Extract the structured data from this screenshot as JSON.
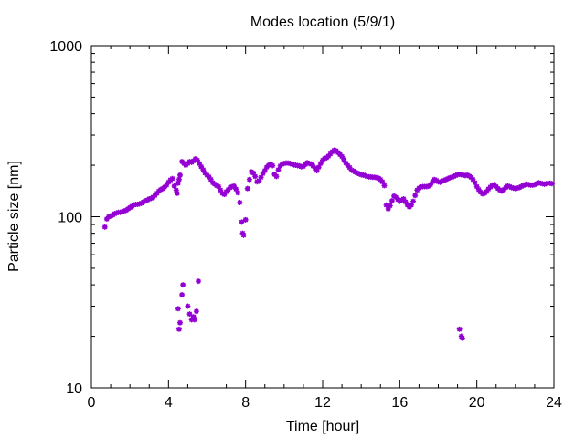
{
  "chart_data": {
    "type": "scatter",
    "title": "Modes location (5/9/1)",
    "xlabel": "Time [hour]",
    "ylabel": "Particle size [nm]",
    "xlim": [
      0,
      24
    ],
    "ylim": [
      10,
      1000
    ],
    "yscale": "log",
    "grid": false,
    "x_ticks": [
      0,
      4,
      8,
      12,
      16,
      20,
      24
    ],
    "x_tick_labels": [
      "0",
      "4",
      "8",
      "12",
      "16",
      "20",
      "24"
    ],
    "y_ticks": [
      10,
      100,
      1000
    ],
    "y_tick_labels": [
      "10",
      "100",
      "1000"
    ],
    "marker_color": "#9400d3",
    "series": [
      {
        "points": [
          [
            0.7,
            87
          ],
          [
            0.8,
            97
          ],
          [
            0.9,
            100
          ],
          [
            1.0,
            101
          ],
          [
            1.1,
            102
          ],
          [
            1.2,
            104
          ],
          [
            1.3,
            105
          ],
          [
            1.4,
            106
          ],
          [
            1.5,
            106
          ],
          [
            1.6,
            107
          ],
          [
            1.7,
            108
          ],
          [
            1.8,
            109
          ],
          [
            1.9,
            111
          ],
          [
            2.0,
            113
          ],
          [
            2.1,
            115
          ],
          [
            2.2,
            117
          ],
          [
            2.3,
            118
          ],
          [
            2.4,
            118
          ],
          [
            2.5,
            119
          ],
          [
            2.6,
            120
          ],
          [
            2.7,
            122
          ],
          [
            2.8,
            124
          ],
          [
            2.9,
            125
          ],
          [
            3.0,
            127
          ],
          [
            3.1,
            128
          ],
          [
            3.2,
            130
          ],
          [
            3.3,
            133
          ],
          [
            3.4,
            137
          ],
          [
            3.5,
            141
          ],
          [
            3.6,
            144
          ],
          [
            3.7,
            146
          ],
          [
            3.8,
            149
          ],
          [
            3.9,
            153
          ],
          [
            4.0,
            159
          ],
          [
            4.1,
            164
          ],
          [
            4.2,
            167
          ],
          [
            4.3,
            151
          ],
          [
            4.4,
            143
          ],
          [
            4.45,
            137
          ],
          [
            4.5,
            157
          ],
          [
            4.55,
            165
          ],
          [
            4.6,
            175
          ],
          [
            4.7,
            210
          ],
          [
            4.8,
            205
          ],
          [
            4.9,
            200
          ],
          [
            5.0,
            205
          ],
          [
            5.1,
            210
          ],
          [
            5.2,
            208
          ],
          [
            5.3,
            212
          ],
          [
            5.4,
            218
          ],
          [
            5.5,
            214
          ],
          [
            5.6,
            205
          ],
          [
            5.7,
            196
          ],
          [
            5.8,
            188
          ],
          [
            5.9,
            180
          ],
          [
            6.0,
            175
          ],
          [
            6.1,
            171
          ],
          [
            6.2,
            165
          ],
          [
            6.3,
            158
          ],
          [
            6.4,
            155
          ],
          [
            6.5,
            152
          ],
          [
            6.6,
            150
          ],
          [
            6.7,
            143
          ],
          [
            6.8,
            137
          ],
          [
            6.9,
            135
          ],
          [
            7.0,
            140
          ],
          [
            7.1,
            144
          ],
          [
            7.2,
            148
          ],
          [
            7.3,
            150
          ],
          [
            7.4,
            151
          ],
          [
            7.5,
            145
          ],
          [
            7.6,
            138
          ],
          [
            7.7,
            121
          ],
          [
            7.8,
            93
          ],
          [
            7.85,
            80
          ],
          [
            7.9,
            78
          ],
          [
            8.0,
            96
          ],
          [
            8.1,
            146
          ],
          [
            8.2,
            165
          ],
          [
            8.3,
            183
          ],
          [
            8.4,
            180
          ],
          [
            8.5,
            172
          ],
          [
            8.6,
            160
          ],
          [
            8.7,
            162
          ],
          [
            8.8,
            170
          ],
          [
            8.9,
            179
          ],
          [
            9.0,
            186
          ],
          [
            9.1,
            195
          ],
          [
            9.2,
            200
          ],
          [
            9.3,
            203
          ],
          [
            9.4,
            199
          ],
          [
            9.5,
            177
          ],
          [
            9.6,
            172
          ],
          [
            9.7,
            188
          ],
          [
            9.8,
            198
          ],
          [
            9.9,
            203
          ],
          [
            10.0,
            205
          ],
          [
            10.1,
            206
          ],
          [
            10.2,
            206
          ],
          [
            10.3,
            205
          ],
          [
            10.4,
            203
          ],
          [
            10.5,
            201
          ],
          [
            10.6,
            200
          ],
          [
            10.7,
            199
          ],
          [
            10.8,
            198
          ],
          [
            10.9,
            196
          ],
          [
            11.0,
            197
          ],
          [
            11.1,
            202
          ],
          [
            11.2,
            207
          ],
          [
            11.3,
            205
          ],
          [
            11.4,
            203
          ],
          [
            11.5,
            198
          ],
          [
            11.6,
            192
          ],
          [
            11.7,
            186
          ],
          [
            11.8,
            195
          ],
          [
            11.9,
            205
          ],
          [
            12.0,
            214
          ],
          [
            12.1,
            219
          ],
          [
            12.2,
            221
          ],
          [
            12.3,
            226
          ],
          [
            12.4,
            233
          ],
          [
            12.5,
            240
          ],
          [
            12.6,
            245
          ],
          [
            12.7,
            243
          ],
          [
            12.8,
            237
          ],
          [
            12.9,
            231
          ],
          [
            13.0,
            225
          ],
          [
            13.1,
            216
          ],
          [
            13.2,
            206
          ],
          [
            13.3,
            199
          ],
          [
            13.4,
            194
          ],
          [
            13.5,
            187
          ],
          [
            13.6,
            185
          ],
          [
            13.7,
            182
          ],
          [
            13.8,
            180
          ],
          [
            13.9,
            178
          ],
          [
            14.0,
            176
          ],
          [
            14.1,
            175
          ],
          [
            14.2,
            174
          ],
          [
            14.3,
            172
          ],
          [
            14.4,
            171
          ],
          [
            14.5,
            171
          ],
          [
            14.6,
            170
          ],
          [
            14.7,
            170
          ],
          [
            14.8,
            169
          ],
          [
            14.9,
            168
          ],
          [
            15.0,
            165
          ],
          [
            15.1,
            160
          ],
          [
            15.2,
            152
          ],
          [
            15.3,
            117
          ],
          [
            15.4,
            111
          ],
          [
            15.5,
            116
          ],
          [
            15.6,
            124
          ],
          [
            15.7,
            132
          ],
          [
            15.8,
            130
          ],
          [
            15.9,
            126
          ],
          [
            16.0,
            123
          ],
          [
            16.1,
            125
          ],
          [
            16.2,
            127
          ],
          [
            16.3,
            122
          ],
          [
            16.4,
            117
          ],
          [
            16.5,
            114
          ],
          [
            16.6,
            117
          ],
          [
            16.7,
            123
          ],
          [
            16.8,
            133
          ],
          [
            16.9,
            143
          ],
          [
            17.0,
            147
          ],
          [
            17.1,
            149
          ],
          [
            17.2,
            150
          ],
          [
            17.3,
            150
          ],
          [
            17.4,
            150
          ],
          [
            17.5,
            151
          ],
          [
            17.6,
            154
          ],
          [
            17.7,
            160
          ],
          [
            17.8,
            165
          ],
          [
            17.9,
            163
          ],
          [
            18.0,
            160
          ],
          [
            18.1,
            159
          ],
          [
            18.2,
            161
          ],
          [
            18.3,
            163
          ],
          [
            18.4,
            165
          ],
          [
            18.5,
            167
          ],
          [
            18.6,
            169
          ],
          [
            18.7,
            170
          ],
          [
            18.8,
            172
          ],
          [
            18.9,
            174
          ],
          [
            19.0,
            176
          ],
          [
            19.1,
            177
          ],
          [
            19.2,
            176
          ],
          [
            19.3,
            175
          ],
          [
            19.4,
            174
          ],
          [
            19.5,
            175
          ],
          [
            19.6,
            173
          ],
          [
            19.7,
            170
          ],
          [
            19.8,
            165
          ],
          [
            19.9,
            158
          ],
          [
            20.0,
            150
          ],
          [
            20.1,
            144
          ],
          [
            20.2,
            139
          ],
          [
            20.3,
            136
          ],
          [
            20.4,
            137
          ],
          [
            20.5,
            140
          ],
          [
            20.6,
            145
          ],
          [
            20.7,
            149
          ],
          [
            20.8,
            152
          ],
          [
            20.9,
            154
          ],
          [
            21.0,
            150
          ],
          [
            21.1,
            146
          ],
          [
            21.2,
            143
          ],
          [
            21.3,
            141
          ],
          [
            21.4,
            144
          ],
          [
            21.5,
            148
          ],
          [
            21.6,
            151
          ],
          [
            21.7,
            150
          ],
          [
            21.8,
            148
          ],
          [
            21.9,
            147
          ],
          [
            22.0,
            146
          ],
          [
            22.1,
            147
          ],
          [
            22.2,
            148
          ],
          [
            22.3,
            150
          ],
          [
            22.4,
            152
          ],
          [
            22.5,
            154
          ],
          [
            22.6,
            155
          ],
          [
            22.7,
            154
          ],
          [
            22.8,
            153
          ],
          [
            22.9,
            153
          ],
          [
            23.0,
            154
          ],
          [
            23.1,
            156
          ],
          [
            23.2,
            158
          ],
          [
            23.3,
            157
          ],
          [
            23.4,
            156
          ],
          [
            23.5,
            155
          ],
          [
            23.6,
            156
          ],
          [
            23.7,
            157
          ],
          [
            23.8,
            157
          ],
          [
            23.9,
            156
          ],
          [
            4.5,
            29
          ],
          [
            4.55,
            22
          ],
          [
            4.6,
            24
          ],
          [
            4.7,
            35
          ],
          [
            4.75,
            40
          ],
          [
            5.0,
            30
          ],
          [
            5.1,
            27
          ],
          [
            5.2,
            25
          ],
          [
            5.3,
            26
          ],
          [
            5.35,
            25
          ],
          [
            5.45,
            28
          ],
          [
            5.55,
            42
          ],
          [
            19.1,
            22
          ],
          [
            19.2,
            20
          ],
          [
            19.25,
            19.5
          ]
        ]
      }
    ]
  }
}
